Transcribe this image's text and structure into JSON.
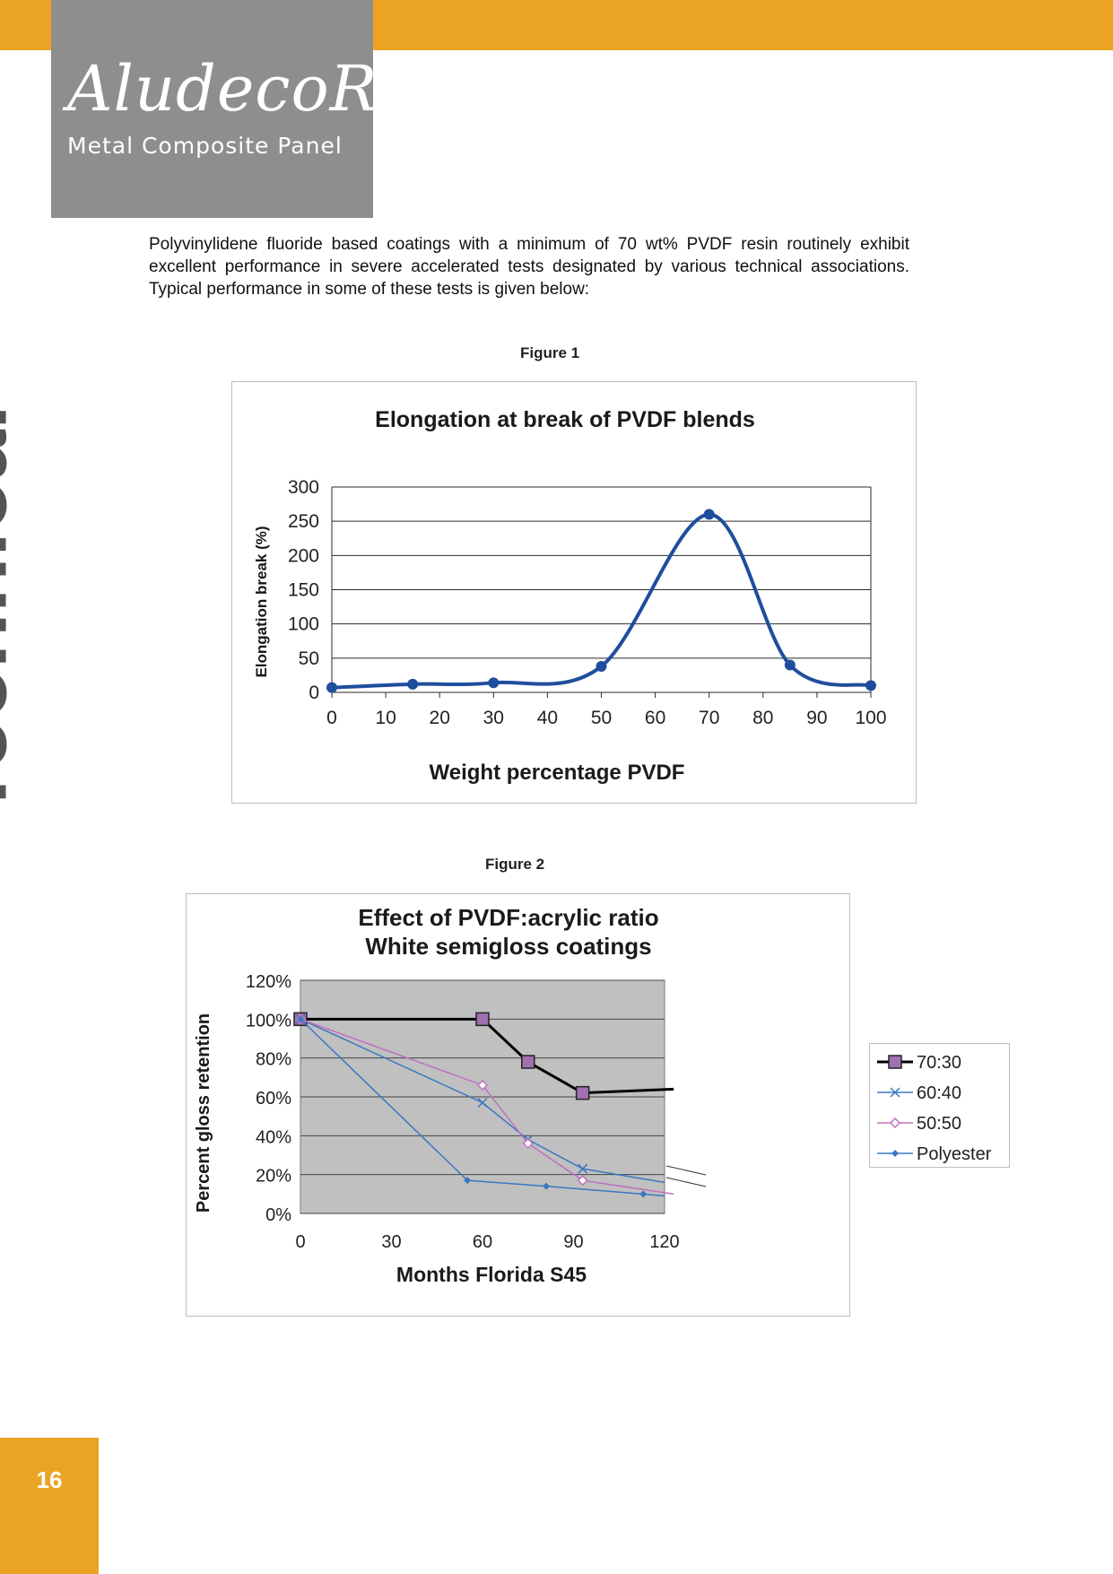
{
  "header": {
    "logo_word": "AludecoR",
    "logo_tagline": "Metal Composite Panel",
    "accent_color": "#eba323",
    "logo_bg_color": "#8e8e8e"
  },
  "intro_text": "Polyvinylidene fluoride based coatings with a minimum of 70 wt% PVDF resin routinely exhibit excellent performance in severe accelerated tests designated by various technical associations. Typical performance in some of these tests is given below:",
  "figure1_caption": "Figure 1",
  "figure2_caption": "Figure 2",
  "sidebar_label": "Technical",
  "page_number": "16",
  "chart_data": [
    {
      "type": "line",
      "title": "Elongation at break of PVDF blends",
      "xlabel": "Weight percentage PVDF",
      "ylabel": "Elongation break (%)",
      "xlim": [
        0,
        100
      ],
      "ylim": [
        0,
        300
      ],
      "x_ticks": [
        0,
        10,
        20,
        30,
        40,
        50,
        60,
        70,
        80,
        90,
        100
      ],
      "y_ticks": [
        0,
        50,
        100,
        150,
        200,
        250,
        300
      ],
      "grid": "horizontal",
      "legend": "none",
      "smooth": true,
      "series": [
        {
          "color": "#1f4e9c",
          "x": [
            0,
            15,
            30,
            50,
            70,
            85,
            100
          ],
          "y": [
            7,
            12,
            14,
            38,
            260,
            40,
            10
          ]
        }
      ]
    },
    {
      "type": "line",
      "title": "Effect of PVDF:acrylic ratio",
      "subtitle": "White semigloss coatings",
      "xlabel": "Months Florida S45",
      "ylabel": "Percent gloss retention",
      "xlim": [
        0,
        120
      ],
      "ylim": [
        0,
        120
      ],
      "x_ticks": [
        0,
        30,
        60,
        90,
        120
      ],
      "y_ticks": [
        "0%",
        "20%",
        "40%",
        "60%",
        "80%",
        "100%",
        "120%"
      ],
      "plot_background": "#c0c0c0",
      "grid": "horizontal",
      "legend": "right",
      "series": [
        {
          "name": "70:30",
          "color": "#000000",
          "marker": "square",
          "marker_fill": "#a070b0",
          "x": [
            0,
            60,
            75,
            93
          ],
          "y": [
            100,
            100,
            78,
            62
          ],
          "continue_to": [
            123,
            64
          ]
        },
        {
          "name": "60:40",
          "color": "#3a78c0",
          "marker": "x",
          "x": [
            0,
            60,
            75,
            93
          ],
          "y": [
            100,
            57,
            38,
            23
          ],
          "continue_to": [
            120,
            16
          ]
        },
        {
          "name": "50:50",
          "color": "#c070c0",
          "marker": "diamond",
          "x": [
            0,
            60,
            75,
            93
          ],
          "y": [
            100,
            66,
            36,
            17
          ],
          "continue_to": [
            123,
            10
          ]
        },
        {
          "name": "Polyester",
          "color": "#3a78c0",
          "marker": "dot",
          "x": [
            0,
            55,
            81,
            113
          ],
          "y": [
            100,
            17,
            14,
            10
          ],
          "continue_to": [
            120,
            9
          ]
        }
      ]
    }
  ]
}
